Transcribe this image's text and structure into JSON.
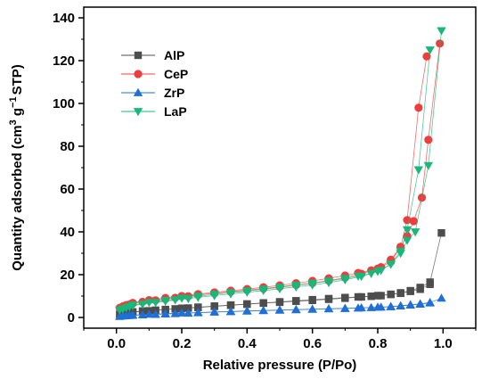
{
  "chart_data": {
    "type": "scatter",
    "xlabel": "Relative pressure (P/Po)",
    "ylabel_parts": {
      "pre": "Quantity adsorbed (cm",
      "sup1": "3",
      "mid": " g",
      "sup2": "−1",
      "post": "STP)"
    },
    "xlim": [
      -0.1,
      1.1
    ],
    "ylim": [
      -5,
      145
    ],
    "xticks": [
      0.0,
      0.2,
      0.4,
      0.6,
      0.8,
      1.0
    ],
    "xtick_labels": [
      "0.0",
      "0.2",
      "0.4",
      "0.6",
      "0.8",
      "1.0"
    ],
    "yticks": [
      0,
      20,
      40,
      60,
      80,
      100,
      120,
      140
    ],
    "ytick_labels": [
      "0",
      "20",
      "40",
      "60",
      "80",
      "100",
      "120",
      "140"
    ],
    "grid": false,
    "legend_position": "top-left",
    "series": [
      {
        "name": "AlP",
        "marker": "square",
        "color": "#4d4d4d",
        "adsorption": {
          "x": [
            0.01,
            0.02,
            0.03,
            0.04,
            0.05,
            0.08,
            0.12,
            0.15,
            0.18,
            0.22,
            0.25,
            0.3,
            0.35,
            0.4,
            0.45,
            0.5,
            0.55,
            0.6,
            0.65,
            0.7,
            0.75,
            0.8,
            0.84,
            0.87,
            0.9,
            0.93,
            0.96,
            0.995
          ],
          "y": [
            1.5,
            2.0,
            2.2,
            2.4,
            2.6,
            3.0,
            3.4,
            3.7,
            4.0,
            4.4,
            4.7,
            5.2,
            5.7,
            6.2,
            6.7,
            7.1,
            7.6,
            8.0,
            8.5,
            9.0,
            9.6,
            10.2,
            10.8,
            11.5,
            12.5,
            14.0,
            16.5,
            39.5
          ]
        },
        "desorption": {
          "x": [
            0.96,
            0.93,
            0.9,
            0.87,
            0.84,
            0.81,
            0.78,
            0.74,
            0.7,
            0.65,
            0.6,
            0.55,
            0.5,
            0.45,
            0.4,
            0.35,
            0.3,
            0.25,
            0.2,
            0.15,
            0.1,
            0.05
          ],
          "y": [
            15.5,
            13.2,
            12.2,
            11.3,
            10.8,
            10.2,
            9.9,
            9.6,
            9.3,
            8.8,
            8.3,
            7.8,
            7.3,
            6.8,
            6.3,
            5.8,
            5.3,
            4.8,
            4.3,
            3.7,
            3.1,
            2.5
          ]
        }
      },
      {
        "name": "CeP",
        "marker": "circle",
        "color": "#f03c3c",
        "adsorption": {
          "x": [
            0.01,
            0.02,
            0.03,
            0.04,
            0.05,
            0.08,
            0.12,
            0.15,
            0.18,
            0.22,
            0.25,
            0.3,
            0.35,
            0.4,
            0.45,
            0.5,
            0.55,
            0.6,
            0.65,
            0.7,
            0.75,
            0.8,
            0.84,
            0.87,
            0.89,
            0.91,
            0.935,
            0.955,
            0.99
          ],
          "y": [
            4.5,
            5.2,
            5.8,
            6.1,
            6.5,
            7.3,
            8.0,
            8.6,
            9.2,
            9.9,
            10.5,
            11.3,
            12.0,
            12.8,
            13.5,
            14.3,
            15.2,
            16.1,
            17.2,
            18.6,
            20.4,
            22.8,
            27.0,
            33.0,
            38.0,
            45.0,
            56.0,
            83.0,
            128.0
          ]
        },
        "desorption": {
          "x": [
            0.95,
            0.925,
            0.89,
            0.87,
            0.84,
            0.81,
            0.78,
            0.74,
            0.7,
            0.65,
            0.6,
            0.55,
            0.5,
            0.45,
            0.4,
            0.35,
            0.3,
            0.25,
            0.2,
            0.15,
            0.1,
            0.05
          ],
          "y": [
            122.0,
            98.0,
            45.5,
            33.0,
            26.0,
            23.5,
            22.0,
            20.8,
            19.6,
            18.3,
            17.1,
            16.0,
            15.0,
            14.1,
            13.3,
            12.5,
            11.7,
            10.9,
            10.0,
            9.1,
            8.1,
            6.8
          ]
        }
      },
      {
        "name": "ZrP",
        "marker": "triangle-up",
        "color": "#1f6fd6",
        "adsorption": {
          "x": [
            0.01,
            0.02,
            0.03,
            0.04,
            0.05,
            0.08,
            0.12,
            0.15,
            0.18,
            0.22,
            0.25,
            0.3,
            0.35,
            0.4,
            0.45,
            0.5,
            0.55,
            0.6,
            0.65,
            0.7,
            0.75,
            0.8,
            0.84,
            0.87,
            0.9,
            0.93,
            0.96,
            0.995
          ],
          "y": [
            0.5,
            0.7,
            0.8,
            0.9,
            1.0,
            1.2,
            1.4,
            1.6,
            1.8,
            2.0,
            2.2,
            2.5,
            2.7,
            3.0,
            3.2,
            3.4,
            3.6,
            3.8,
            4.0,
            4.2,
            4.5,
            4.8,
            5.1,
            5.5,
            5.9,
            6.4,
            7.0,
            9.0
          ]
        },
        "desorption": {
          "x": [
            0.96,
            0.93,
            0.9,
            0.87,
            0.84,
            0.81,
            0.78,
            0.74,
            0.7,
            0.65,
            0.6,
            0.55,
            0.5,
            0.45,
            0.4,
            0.35,
            0.3,
            0.25,
            0.2,
            0.15,
            0.1,
            0.05
          ],
          "y": [
            6.8,
            6.2,
            5.8,
            5.4,
            5.0,
            4.8,
            4.6,
            4.4,
            4.3,
            4.1,
            3.9,
            3.7,
            3.5,
            3.3,
            3.1,
            2.8,
            2.6,
            2.3,
            2.1,
            1.8,
            1.5,
            1.1
          ]
        }
      },
      {
        "name": "LaP",
        "marker": "triangle-down",
        "color": "#17b87a",
        "adsorption": {
          "x": [
            0.01,
            0.02,
            0.03,
            0.04,
            0.05,
            0.08,
            0.12,
            0.15,
            0.18,
            0.22,
            0.25,
            0.3,
            0.35,
            0.4,
            0.45,
            0.5,
            0.55,
            0.6,
            0.65,
            0.7,
            0.75,
            0.8,
            0.84,
            0.87,
            0.89,
            0.915,
            0.955,
            0.995
          ],
          "y": [
            3.5,
            4.0,
            4.5,
            5.0,
            5.5,
            6.2,
            7.0,
            7.6,
            8.2,
            8.8,
            9.4,
            10.2,
            11.0,
            11.8,
            12.6,
            13.4,
            14.3,
            15.2,
            16.3,
            17.6,
            19.2,
            21.5,
            24.8,
            30.0,
            36.0,
            40.0,
            71.0,
            134.0
          ]
        },
        "desorption": {
          "x": [
            0.96,
            0.925,
            0.89,
            0.87,
            0.84,
            0.81,
            0.78,
            0.74,
            0.7,
            0.65,
            0.6,
            0.55,
            0.5,
            0.45,
            0.4,
            0.35,
            0.3,
            0.25,
            0.2,
            0.15,
            0.1,
            0.05
          ],
          "y": [
            125.0,
            69.0,
            41.0,
            31.0,
            25.0,
            22.0,
            20.5,
            19.3,
            18.2,
            17.0,
            16.0,
            15.0,
            14.1,
            13.2,
            12.4,
            11.6,
            10.8,
            9.9,
            9.0,
            8.0,
            7.0,
            5.8
          ]
        }
      }
    ]
  }
}
